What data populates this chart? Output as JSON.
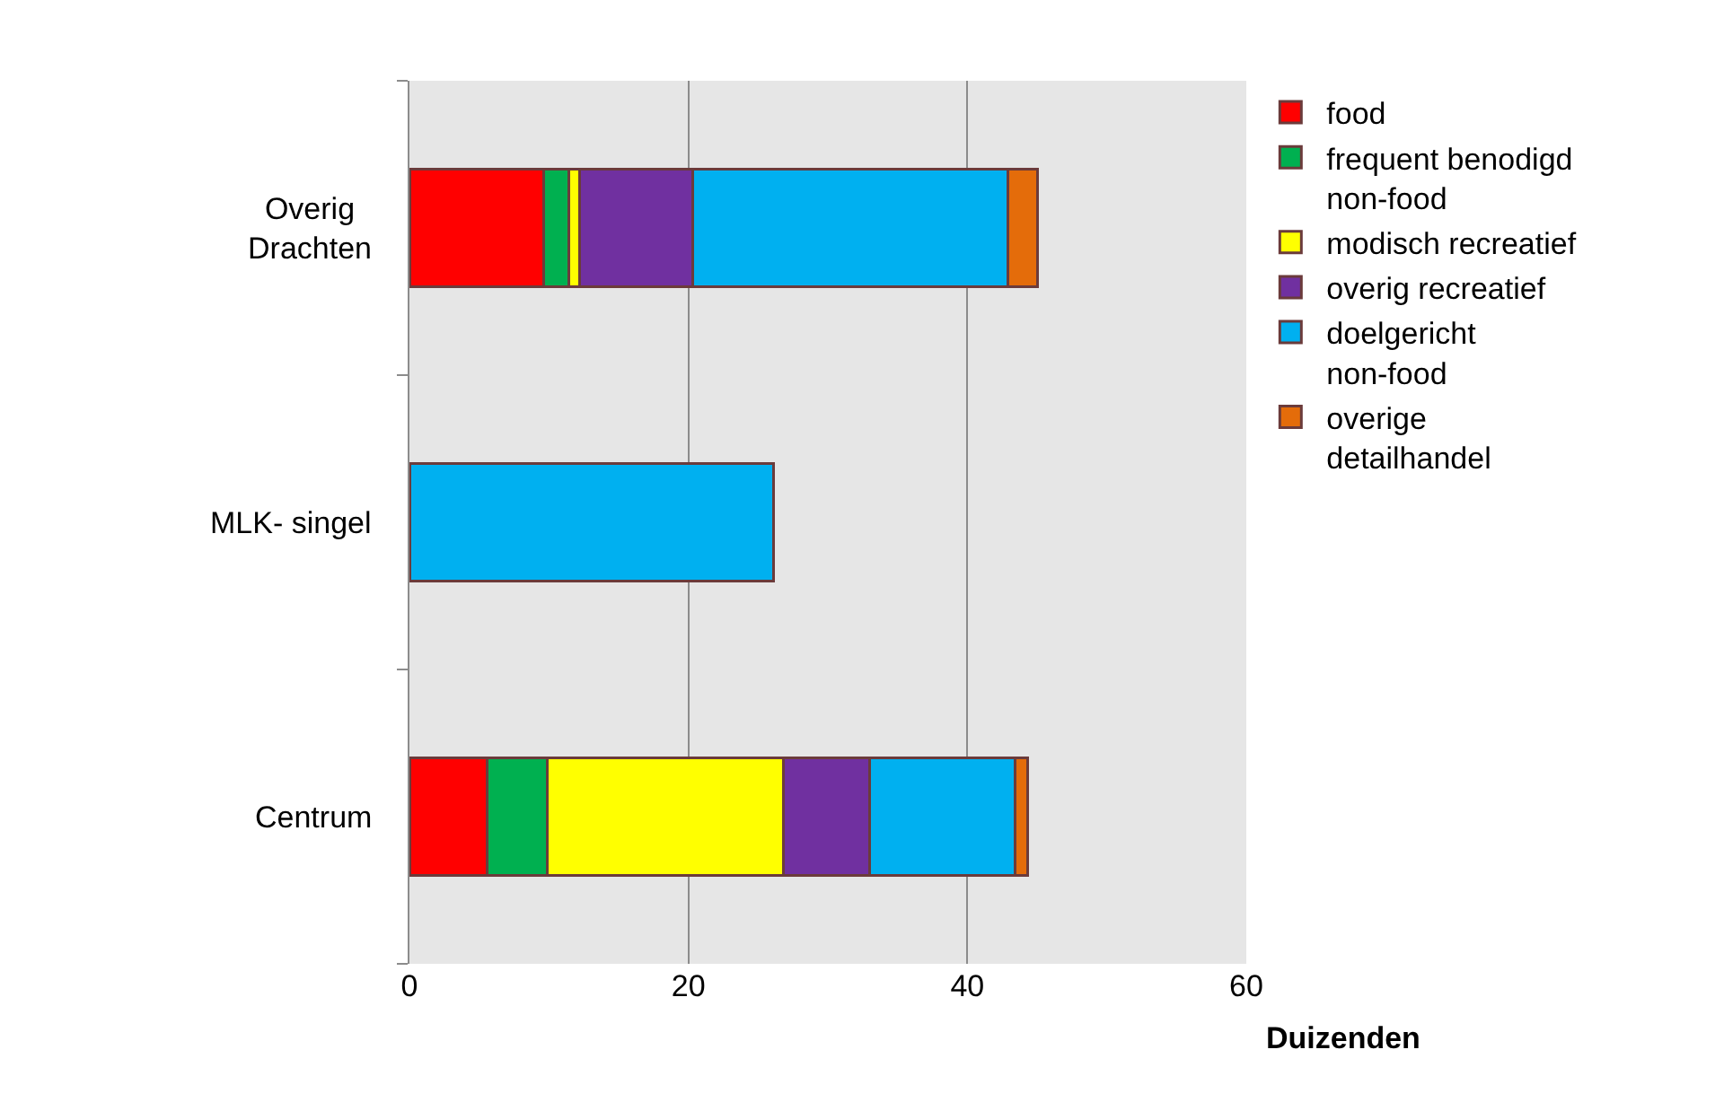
{
  "chart_data": {
    "type": "bar",
    "orientation": "horizontal",
    "stacked": true,
    "xlabel": "Duizenden",
    "categories": [
      "Overig Drachten",
      "MLK- singel",
      "Centrum"
    ],
    "series": [
      {
        "name": "food",
        "color": "#ff0000",
        "values": [
          9.6,
          null,
          5.6
        ]
      },
      {
        "name": "frequent benodigd non-food",
        "color": "#00b050",
        "values": [
          1.8,
          null,
          4.3
        ]
      },
      {
        "name": "modisch recreatief",
        "color": "#ffff00",
        "values": [
          0.8,
          null,
          16.9
        ]
      },
      {
        "name": "overig recreatief",
        "color": "#7030a0",
        "values": [
          8.1,
          null,
          6.2
        ]
      },
      {
        "name": "doelgericht non-food",
        "color": "#00b0f0",
        "values": [
          22.6,
          26.1,
          10.4
        ]
      },
      {
        "name": "overige detailhandel",
        "color": "#e46c0a",
        "values": [
          2.1,
          null,
          0.9
        ]
      }
    ],
    "xlim": [
      0,
      60
    ],
    "xticks": [
      0,
      20,
      40,
      60
    ],
    "grid": "x",
    "legend": "right"
  }
}
